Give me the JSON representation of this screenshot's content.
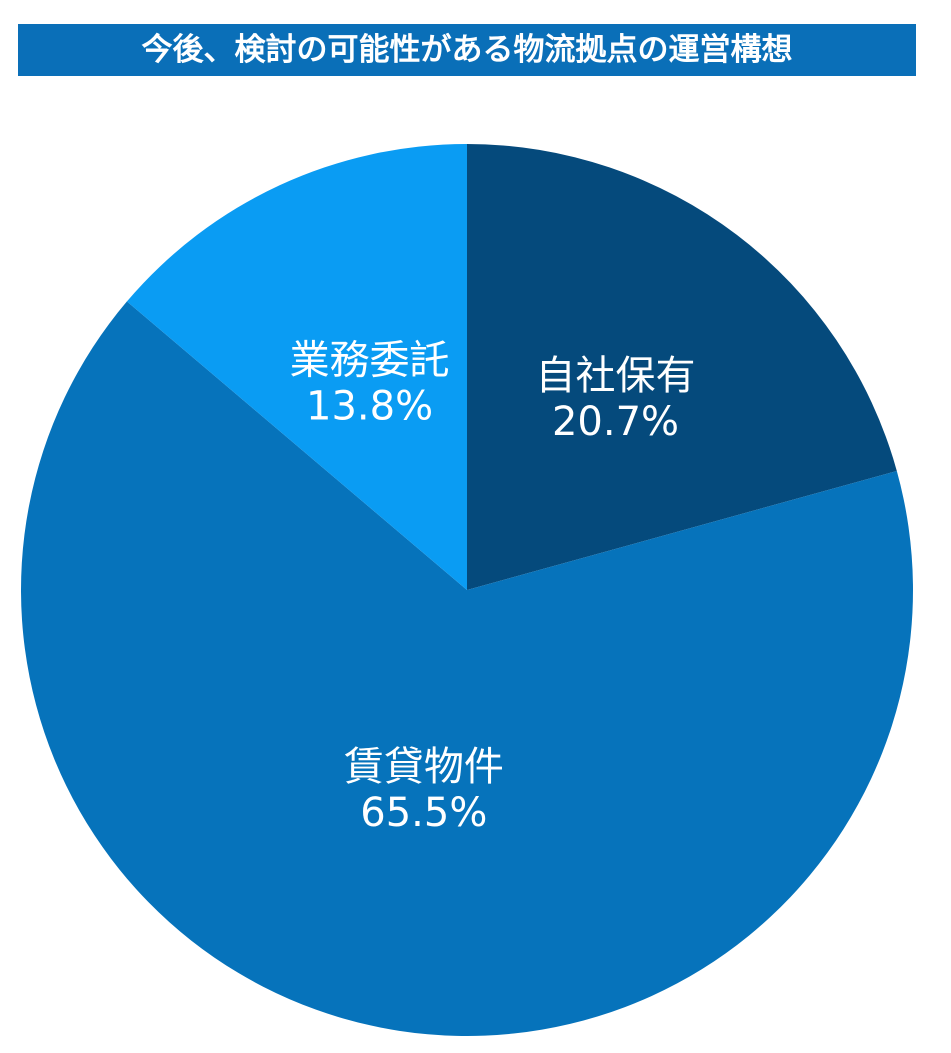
{
  "title": "今後、検討の可能性がある物流拠点の運営構想",
  "chart_data": {
    "type": "pie",
    "title": "今後、検討の可能性がある物流拠点の運営構想",
    "start": "12 o'clock",
    "direction": "clockwise",
    "slices": [
      {
        "label": "自社保有",
        "value": 20.7,
        "value_label": "20.7%",
        "color": "#054a7c"
      },
      {
        "label": "賃貸物件",
        "value": 65.5,
        "value_label": "65.5%",
        "color": "#0673bb"
      },
      {
        "label": "業務委託",
        "value": 13.8,
        "value_label": "13.8%",
        "color": "#0a9cf3"
      }
    ]
  }
}
